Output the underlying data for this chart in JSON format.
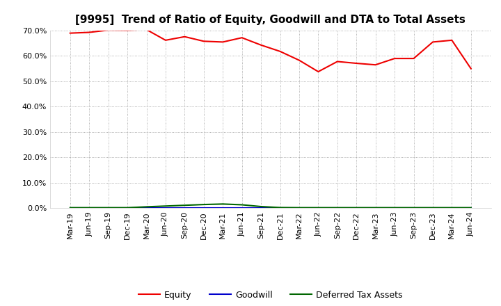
{
  "title": "[9995]  Trend of Ratio of Equity, Goodwill and DTA to Total Assets",
  "labels": [
    "Mar-19",
    "Jun-19",
    "Sep-19",
    "Dec-19",
    "Mar-20",
    "Jun-20",
    "Sep-20",
    "Dec-20",
    "Mar-21",
    "Jun-21",
    "Sep-21",
    "Dec-21",
    "Mar-22",
    "Jun-22",
    "Sep-22",
    "Dec-22",
    "Mar-23",
    "Jun-23",
    "Sep-23",
    "Dec-23",
    "Mar-24",
    "Jun-24"
  ],
  "equity": [
    69.0,
    69.3,
    70.2,
    70.1,
    70.4,
    66.2,
    67.6,
    65.8,
    65.5,
    67.2,
    64.3,
    61.8,
    58.3,
    53.8,
    57.8,
    57.1,
    56.5,
    59.0,
    59.0,
    65.5,
    66.2,
    55.0
  ],
  "goodwill": [
    0.0,
    0.0,
    0.0,
    0.0,
    0.0,
    0.0,
    0.0,
    0.0,
    0.0,
    0.0,
    0.0,
    0.0,
    0.0,
    0.0,
    0.0,
    0.0,
    0.0,
    0.0,
    0.0,
    0.0,
    0.0,
    0.0
  ],
  "dta": [
    0.15,
    0.15,
    0.15,
    0.15,
    0.5,
    0.8,
    1.1,
    1.4,
    1.6,
    1.3,
    0.6,
    0.2,
    0.15,
    0.15,
    0.15,
    0.15,
    0.15,
    0.15,
    0.15,
    0.15,
    0.15,
    0.15
  ],
  "equity_color": "#ee0000",
  "goodwill_color": "#0000cc",
  "dta_color": "#006600",
  "ylim_min": 0,
  "ylim_max": 70,
  "yticks": [
    0,
    10,
    20,
    30,
    40,
    50,
    60,
    70
  ],
  "bg_color": "#ffffff",
  "grid_color": "#999999",
  "title_fontsize": 11,
  "tick_fontsize": 8,
  "legend_fontsize": 9
}
